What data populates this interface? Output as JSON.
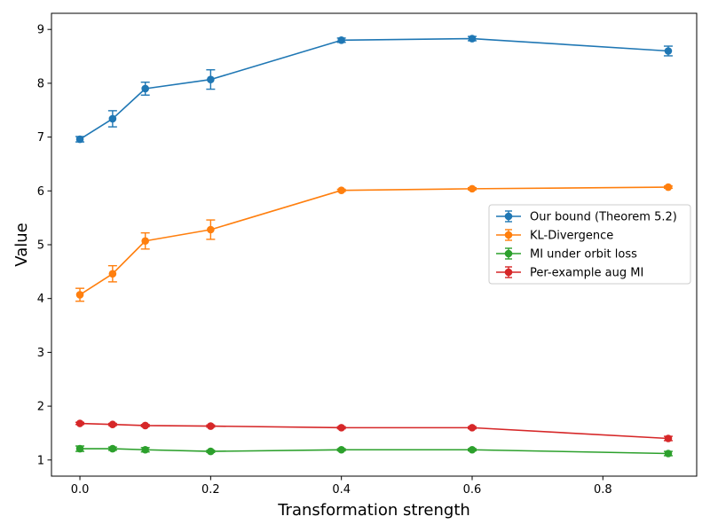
{
  "chart_data": {
    "type": "line",
    "title": "",
    "xlabel": "Transformation strength",
    "ylabel": "Value",
    "xlim": [
      -0.0435,
      0.9435
    ],
    "ylim": [
      0.7,
      9.3
    ],
    "xticks": [
      0.0,
      0.2,
      0.4,
      0.6,
      0.8
    ],
    "xtick_labels": [
      "0.0",
      "0.2",
      "0.4",
      "0.6",
      "0.8"
    ],
    "yticks": [
      1,
      2,
      3,
      4,
      5,
      6,
      7,
      8,
      9
    ],
    "ytick_labels": [
      "1",
      "2",
      "3",
      "4",
      "5",
      "6",
      "7",
      "8",
      "9"
    ],
    "grid": false,
    "legend_position": "center-right",
    "x": [
      0.0,
      0.05,
      0.1,
      0.2,
      0.4,
      0.6,
      0.9
    ],
    "series": [
      {
        "name": "Our bound (Theorem 5.2)",
        "color": "#1f77b4",
        "values": [
          6.96,
          7.34,
          7.9,
          8.07,
          8.8,
          8.83,
          8.6
        ],
        "errors": [
          0.05,
          0.15,
          0.12,
          0.18,
          0.04,
          0.04,
          0.09
        ]
      },
      {
        "name": "KL-Divergence",
        "color": "#ff7f0e",
        "values": [
          4.07,
          4.46,
          5.07,
          5.28,
          6.01,
          6.04,
          6.07
        ],
        "errors": [
          0.12,
          0.15,
          0.15,
          0.18,
          0.02,
          0.02,
          0.02
        ]
      },
      {
        "name": "MI under orbit loss",
        "color": "#2ca02c",
        "values": [
          1.21,
          1.21,
          1.19,
          1.16,
          1.19,
          1.19,
          1.12
        ],
        "errors": [
          0.05,
          0.03,
          0.04,
          0.02,
          0.02,
          0.02,
          0.04
        ]
      },
      {
        "name": "Per-example aug MI",
        "color": "#d62728",
        "values": [
          1.68,
          1.66,
          1.64,
          1.63,
          1.6,
          1.6,
          1.4
        ],
        "errors": [
          0.02,
          0.02,
          0.02,
          0.02,
          0.02,
          0.02,
          0.04
        ]
      }
    ]
  }
}
